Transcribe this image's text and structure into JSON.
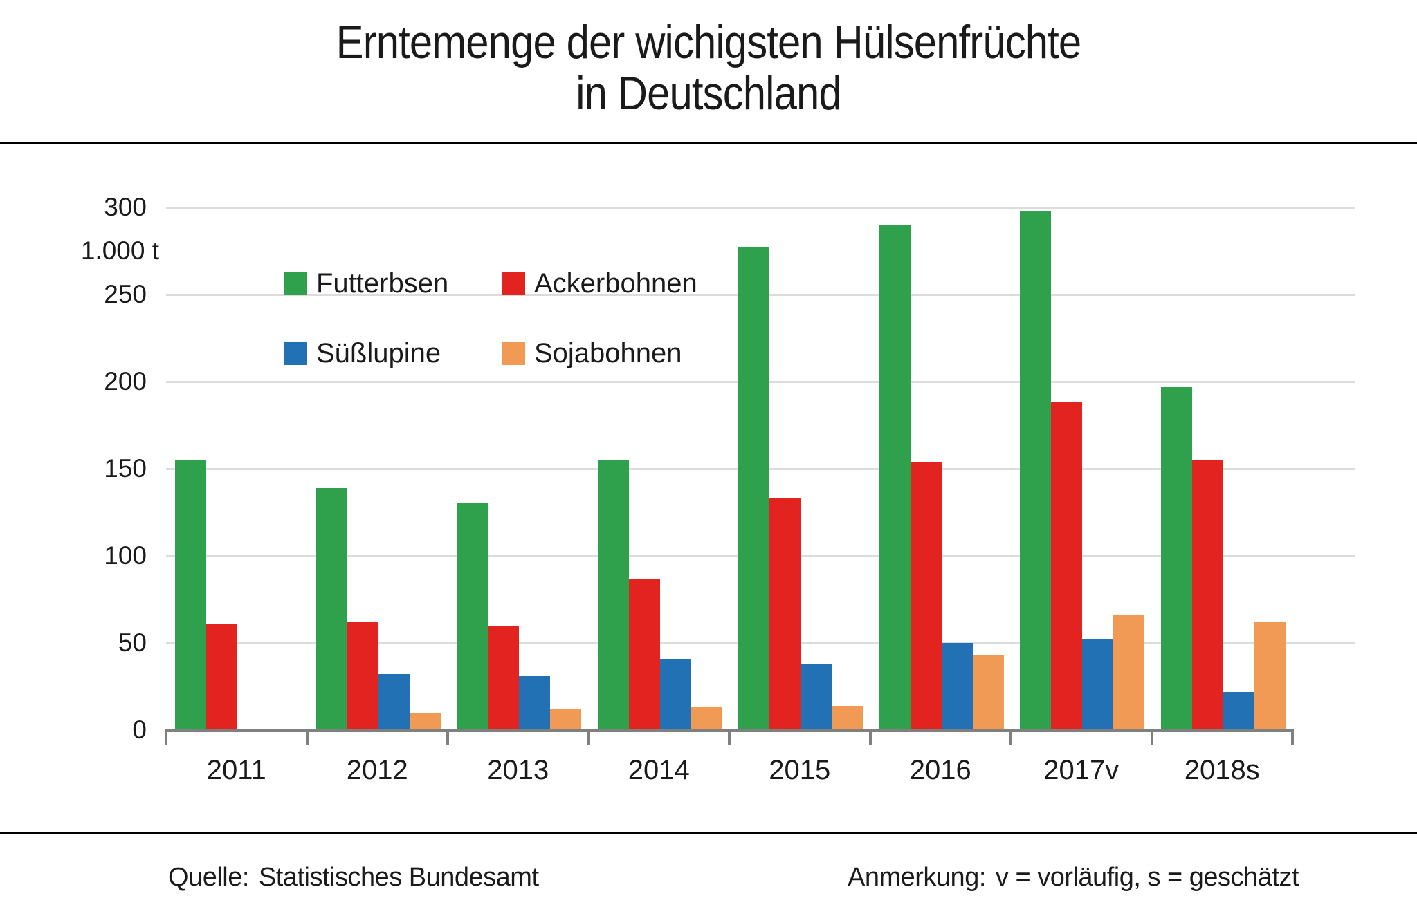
{
  "title": {
    "line1": "Erntemenge der wichigsten Hülsenfrüchte",
    "line2": "in Deutschland"
  },
  "y_axis": {
    "unit_label": "1.000 t",
    "tick_labels": [
      "0",
      "50",
      "100",
      "150",
      "200",
      "250",
      "300"
    ]
  },
  "footer": {
    "source_label": "Quelle:",
    "source_text": "Statistisches Bundesamt",
    "note_label": "Anmerkung:",
    "note_text": "v = vorläufig, s = geschätzt"
  },
  "style": {
    "gridline_color": "#DCDCDC",
    "axis_color": "#808080",
    "text_color": "#1A1A1A",
    "divider_color": "#000000"
  },
  "chart_data": {
    "type": "bar",
    "title": "Erntemenge der wichigsten Hülsenfrüchte in Deutschland",
    "ylabel": "1.000 t",
    "xlabel": "",
    "ylim": [
      0,
      300
    ],
    "ytick_step": 50,
    "grid": true,
    "legend_position": "upper-left-inside",
    "categories": [
      "2011",
      "2012",
      "2013",
      "2014",
      "2015",
      "2016",
      "2017v",
      "2018s"
    ],
    "series": [
      {
        "name": "Futterbsen",
        "color": "#2FA14D",
        "values": [
          155,
          139,
          130,
          155,
          277,
          290,
          298,
          197
        ]
      },
      {
        "name": "Ackerbohnen",
        "color": "#E2231F",
        "values": [
          61,
          62,
          60,
          87,
          133,
          154,
          188,
          155
        ]
      },
      {
        "name": "Süßlupine",
        "color": "#2271B5",
        "values": [
          null,
          32,
          31,
          41,
          38,
          50,
          52,
          22
        ]
      },
      {
        "name": "Sojabohnen",
        "color": "#F19A55",
        "values": [
          null,
          10,
          12,
          13,
          14,
          43,
          66,
          62
        ]
      }
    ]
  }
}
